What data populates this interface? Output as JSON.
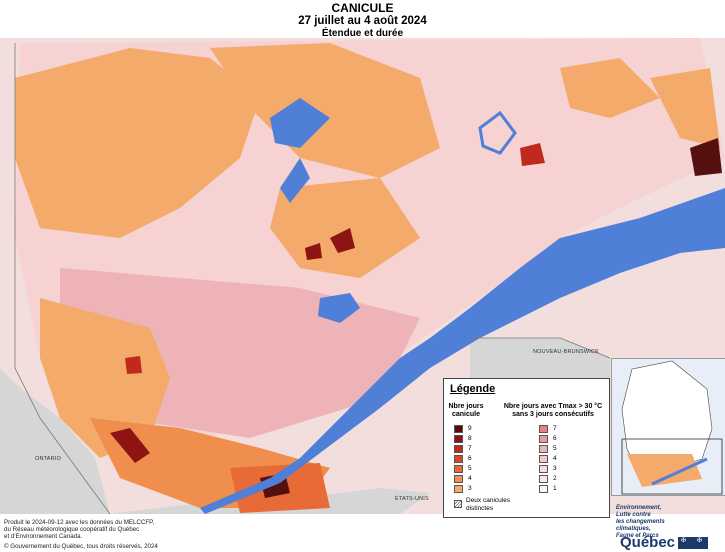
{
  "header": {
    "title": "CANICULE",
    "date_range": "27 juillet au 4 août 2024",
    "subtitle": "Étendue et durée"
  },
  "map_labels": {
    "nouveau_brunswick": "NOUVEAU-BRUNSWICK",
    "ontario": "ONTARIO",
    "etats_unis": "ÉTATS-UNIS"
  },
  "legend": {
    "title": "Légende",
    "col1_heading": "Nbre jours canicule",
    "col2_heading": "Nbre jours avec Tmax > 30 °C sans 3 jours consécutifs",
    "canicule_classes": [
      {
        "label": "9",
        "color": "#5a0a0a"
      },
      {
        "label": "8",
        "color": "#8e1414"
      },
      {
        "label": "7",
        "color": "#bf2a1c"
      },
      {
        "label": "6",
        "color": "#d9482a"
      },
      {
        "label": "5",
        "color": "#e86a36"
      },
      {
        "label": "4",
        "color": "#ef8e4d"
      },
      {
        "label": "3",
        "color": "#f4aa6a"
      }
    ],
    "tmax_classes": [
      {
        "label": "7",
        "color": "#e37f87"
      },
      {
        "label": "6",
        "color": "#ea9aa0"
      },
      {
        "label": "5",
        "color": "#f0b3b6"
      },
      {
        "label": "4",
        "color": "#f5c9cb"
      },
      {
        "label": "3",
        "color": "#f8dadb"
      },
      {
        "label": "2",
        "color": "#fbe8e8"
      },
      {
        "label": "1",
        "color": "#fdf4f4"
      }
    ],
    "hatch_label": "Deux canicules distinctes"
  },
  "footer": {
    "credits_line1": "Produit le 2024-09-12 avec les données du MELCCFP,",
    "credits_line2": "du Réseau météorologique coopératif du Québec",
    "credits_line3": "et d'Environnement Canada.",
    "copyright": "© Gouvernement du Québec, tous droits réservés, 2024",
    "ministry_line1": "Environnement,",
    "ministry_line2": "Lutte contre",
    "ministry_line3": "les changements",
    "ministry_line4": "climatiques,",
    "ministry_line5": "Faune et Parcs",
    "logo_text": "Québec"
  }
}
